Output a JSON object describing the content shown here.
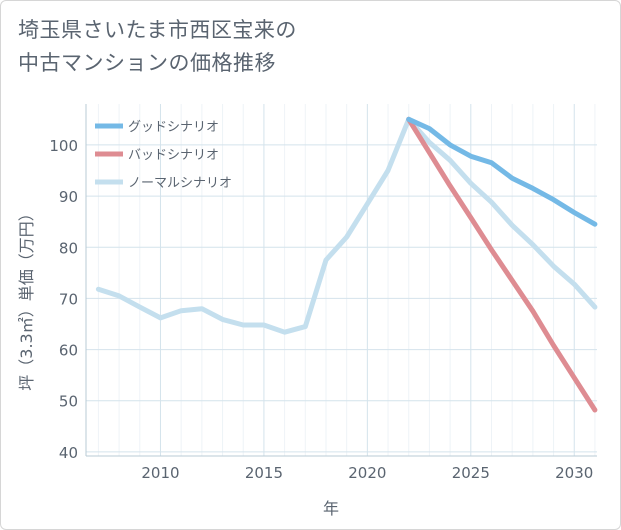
{
  "chart_data": {
    "type": "line",
    "title_line1": "埼玉県さいたま市西区宝来の",
    "title_line2": "中古マンションの価格推移",
    "xlabel": "年",
    "ylabel": "坪（3.3㎡）単価（万円）",
    "xlim": [
      2006.4,
      2031.1
    ],
    "ylim": [
      39.2,
      108
    ],
    "x_ticks": [
      2010,
      2015,
      2020,
      2025,
      2030
    ],
    "y_ticks": [
      40,
      50,
      60,
      70,
      80,
      90,
      100
    ],
    "grid": true,
    "legend_position": "top-left",
    "series": [
      {
        "name": "グッドシナリオ",
        "color": "#74b9e6",
        "x": [
          2022,
          2023,
          2024,
          2025,
          2026,
          2027,
          2028,
          2029,
          2030,
          2031
        ],
        "values": [
          105,
          103.2,
          100,
          97.8,
          96.5,
          93.5,
          91.5,
          89.3,
          86.8,
          84.5
        ]
      },
      {
        "name": "バッドシナリオ",
        "color": "#de8c92",
        "x": [
          2022,
          2023,
          2024,
          2025,
          2026,
          2027,
          2028,
          2029,
          2030,
          2031
        ],
        "values": [
          105,
          98.5,
          92,
          85.8,
          79.5,
          73.5,
          67.5,
          60.8,
          54.5,
          48.2
        ]
      },
      {
        "name": "ノーマルシナリオ",
        "color": "#c4dfee",
        "x": [
          2007,
          2008,
          2009,
          2010,
          2011,
          2012,
          2013,
          2014,
          2015,
          2016,
          2017,
          2018,
          2019,
          2020,
          2021,
          2022,
          2023,
          2024,
          2025,
          2026,
          2027,
          2028,
          2029,
          2030,
          2031
        ],
        "values": [
          71.8,
          70.5,
          68.3,
          66.2,
          67.6,
          68.0,
          65.9,
          64.8,
          64.8,
          63.4,
          64.5,
          77.5,
          82.0,
          88.5,
          95.0,
          105,
          100.5,
          97,
          92.5,
          88.8,
          84.3,
          80.5,
          76.3,
          72.8,
          68.3
        ]
      }
    ]
  }
}
